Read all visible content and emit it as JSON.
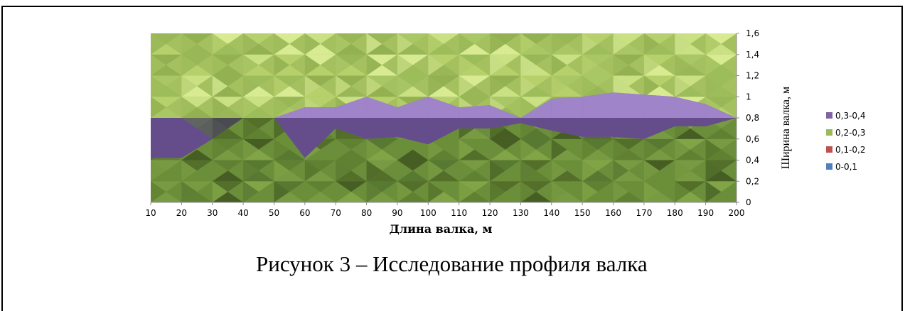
{
  "chart_data": {
    "type": "area",
    "subtype": "surface-contour",
    "title": "",
    "xlabel": "Длина валка, м",
    "ylabel": "Ширина валка, м",
    "x": [
      10,
      20,
      30,
      40,
      50,
      60,
      70,
      80,
      90,
      100,
      110,
      120,
      130,
      140,
      150,
      160,
      170,
      180,
      190,
      200
    ],
    "x_tick_labels": [
      "10",
      "20",
      "30",
      "40",
      "50",
      "60",
      "70",
      "80",
      "90",
      "100",
      "110",
      "120",
      "130",
      "140",
      "150",
      "160",
      "170",
      "180",
      "190",
      "200"
    ],
    "y_tick_labels": [
      "0",
      "0,2",
      "0,4",
      "0,6",
      "0,8",
      "1",
      "1,2",
      "1,4",
      "1,6"
    ],
    "ylim": [
      0,
      1.6
    ],
    "legend_position": "right",
    "series": [
      {
        "name": "0,3-0,4",
        "color": "#8064a2",
        "upper": [
          0.8,
          0.8,
          0.6,
          0.8,
          0.8,
          0.9,
          0.9,
          1.0,
          0.9,
          1.0,
          0.9,
          0.92,
          0.8,
          0.98,
          1.0,
          1.04,
          1.02,
          1.0,
          0.93,
          0.8
        ],
        "lower": [
          0.42,
          0.42,
          0.6,
          0.8,
          0.8,
          0.42,
          0.7,
          0.6,
          0.62,
          0.55,
          0.7,
          0.7,
          0.75,
          0.68,
          0.62,
          0.62,
          0.6,
          0.72,
          0.72,
          0.8
        ]
      },
      {
        "name": "0,2-0,3",
        "color": "#9bbb59"
      },
      {
        "name": "0,1-0,2",
        "color": "#c0504d"
      },
      {
        "name": "0-0,1",
        "color": "#4f81bd"
      }
    ]
  },
  "caption": "Рисунок 3 – Исследование профиля валка"
}
